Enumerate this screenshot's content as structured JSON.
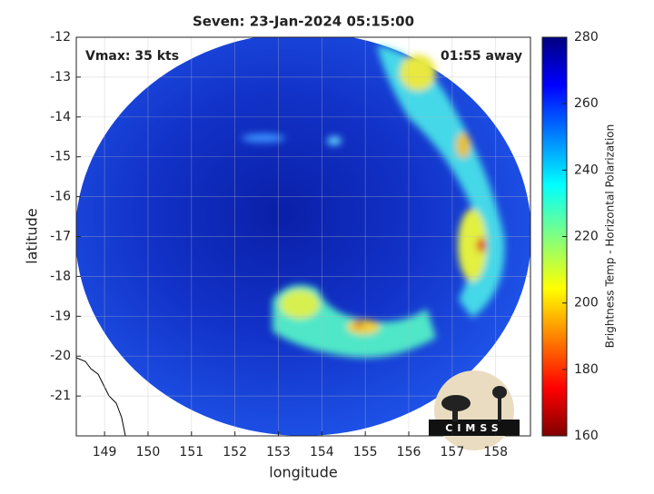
{
  "chart_data": {
    "type": "image",
    "title": "Seven: 23-Jan-2024 05:15:00",
    "annotations": [
      "Vmax: 35 kts",
      "01:55 away"
    ],
    "xlabel": "longitude",
    "ylabel": "latitude",
    "xlim": [
      148.35,
      158.8
    ],
    "xticks": [
      149,
      150,
      151,
      152,
      153,
      154,
      155,
      156,
      157,
      158
    ],
    "ylim": [
      -22,
      -12
    ],
    "yticks": [
      -21,
      -20,
      -19,
      -18,
      -17,
      -16,
      -15,
      -14,
      -13,
      -12
    ],
    "grid": true,
    "colorbar": {
      "label": "Brightness Temp - Horizontal Polarization",
      "colormap": "jet",
      "clim": [
        160,
        280
      ],
      "ticks": [
        160,
        180,
        200,
        220,
        240,
        260,
        280
      ]
    },
    "logo": "CIMSS"
  }
}
